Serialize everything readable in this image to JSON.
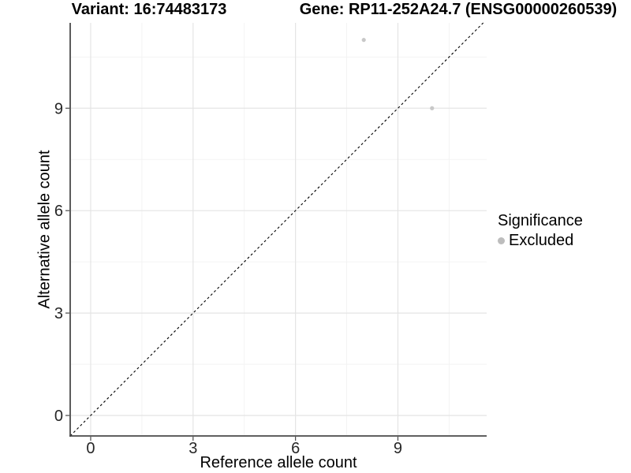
{
  "chart_data": {
    "type": "scatter",
    "title_left": "Variant: 16:74483173",
    "title_right": "Gene: RP11-252A24.7 (ENSG00000260539)",
    "xlabel": "Reference allele count",
    "ylabel": "Alternative allele count",
    "xlim": [
      -0.6,
      11.6
    ],
    "ylim": [
      -0.6,
      11.5
    ],
    "xticks": [
      0,
      3,
      6,
      9
    ],
    "yticks": [
      0,
      3,
      6,
      9
    ],
    "xticks_minor": [
      1.5,
      4.5,
      7.5,
      10.5
    ],
    "yticks_minor": [
      1.5,
      4.5,
      7.5,
      10.5
    ],
    "grid": "major+minor",
    "legend_position": "right",
    "series": [
      {
        "name": "Excluded",
        "color": "#c8c8c8",
        "marker_radius": 2.6,
        "points": [
          {
            "x": 8,
            "y": 11
          },
          {
            "x": 10,
            "y": 9
          }
        ]
      }
    ],
    "identity_line": {
      "type": "abline",
      "slope": 1,
      "intercept": 0,
      "style": "dashed",
      "color": "#000000"
    },
    "legend": {
      "title": "Significance",
      "items": [
        {
          "label": "Excluded",
          "color": "#bdbdbd",
          "marker": "circle"
        }
      ]
    },
    "colors": {
      "axis_line": "#4a4a4a",
      "tick_text": "#262626",
      "grid_major": "#e4e4e4",
      "grid_minor": "#f2f2f2",
      "background": "#ffffff"
    }
  }
}
